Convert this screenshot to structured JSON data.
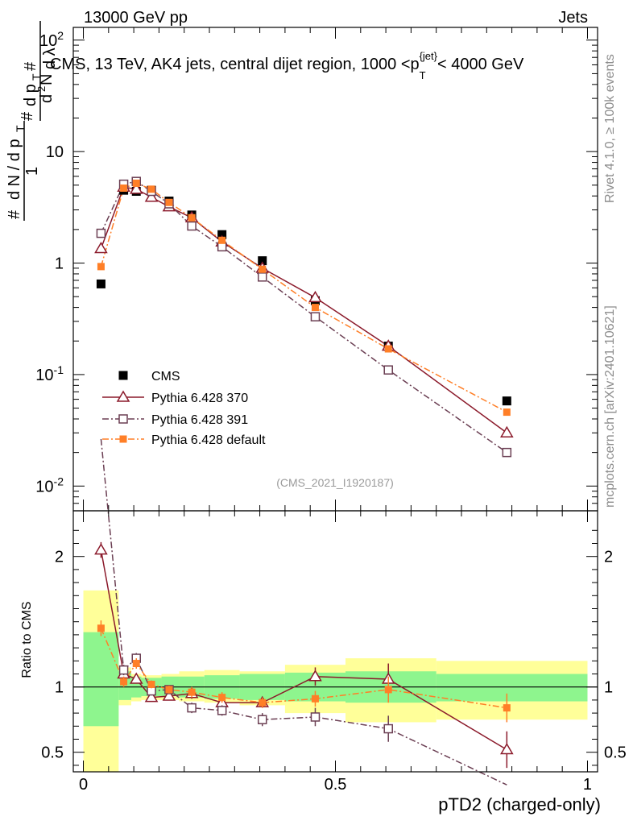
{
  "header": {
    "left": "13000 GeV pp",
    "right": "Jets"
  },
  "side": {
    "rivet": "Rivet 4.1.0, ≥ 100k events",
    "mcplots": "mcplots.cern.ch [arXiv:2401.10621]"
  },
  "colors": {
    "data": "#000000",
    "p370": "#8b1a2b",
    "p391": "#6b3f53",
    "pdef": "#ff7f27",
    "band_inner": "#8ef58e",
    "band_outer": "#ffff99"
  },
  "chart_data": [
    {
      "type": "scatter",
      "panel": "main",
      "title": "CMS, 13 TeV, AK4 jets, central dijet region, 1000 <p_T^{jet}< 4000 GeV",
      "ylabel": "1/(dN/dp_T) d²N/(dp_T dλ)",
      "yscale": "log",
      "ylim": [
        0.006,
        130
      ],
      "xlim": [
        -0.02,
        1.02
      ],
      "yticks": [
        {
          "v": 0.01,
          "label": "10^-2"
        },
        {
          "v": 0.1,
          "label": "10^-1"
        },
        {
          "v": 1,
          "label": "1"
        },
        {
          "v": 10,
          "label": "10"
        },
        {
          "v": 100,
          "label": "10^2"
        }
      ],
      "watermark": "(CMS_2021_I1920187)",
      "x": [
        0.035,
        0.08,
        0.105,
        0.135,
        0.17,
        0.215,
        0.275,
        0.355,
        0.46,
        0.605,
        0.84
      ],
      "series": [
        {
          "name": "CMS",
          "key": "data",
          "marker": "square-filled",
          "values": [
            0.65,
            4.5,
            4.4,
            4.5,
            3.6,
            2.7,
            1.8,
            1.05,
            0.46,
            0.18,
            0.058
          ]
        },
        {
          "name": "Pythia 6.428 370",
          "key": "p370",
          "marker": "triangle-open",
          "line": "solid",
          "values": [
            1.35,
            4.8,
            4.6,
            3.9,
            3.2,
            2.55,
            1.55,
            0.9,
            0.49,
            0.18,
            0.03
          ]
        },
        {
          "name": "Pythia 6.428 391",
          "key": "p391",
          "marker": "square-open",
          "line": "dashdot",
          "values": [
            1.85,
            5.1,
            5.4,
            4.4,
            3.4,
            2.15,
            1.4,
            0.75,
            0.33,
            0.11,
            0.02
          ]
        },
        {
          "name": "Pythia 6.428 default",
          "key": "pdef",
          "marker": "square-small-filled",
          "line": "dashdot",
          "values": [
            0.93,
            4.7,
            5.2,
            4.6,
            3.5,
            2.55,
            1.6,
            0.88,
            0.4,
            0.17,
            0.046
          ]
        }
      ]
    },
    {
      "type": "line",
      "panel": "ratio",
      "ylabel": "Ratio to CMS",
      "xlabel": "pTD2 (charged-only)",
      "ylim": [
        0.35,
        2.35
      ],
      "xlim": [
        -0.02,
        1.02
      ],
      "yticks": [
        0.5,
        1,
        2
      ],
      "xticks": [
        {
          "v": 0,
          "label": "0"
        },
        {
          "v": 0.5,
          "label": "0.5"
        },
        {
          "v": 1,
          "label": "1"
        }
      ],
      "bands": [
        {
          "x0": 0.0,
          "x1": 0.07,
          "inner": [
            0.7,
            1.42
          ],
          "outer": [
            0.0,
            1.74
          ]
        },
        {
          "x0": 0.07,
          "x1": 0.095,
          "inner": [
            0.9,
            1.12
          ],
          "outer": [
            0.86,
            1.15
          ]
        },
        {
          "x0": 0.095,
          "x1": 0.115,
          "inner": [
            0.92,
            1.08
          ],
          "outer": [
            0.89,
            1.1
          ]
        },
        {
          "x0": 0.115,
          "x1": 0.155,
          "inner": [
            0.93,
            1.07
          ],
          "outer": [
            0.9,
            1.09
          ]
        },
        {
          "x0": 0.155,
          "x1": 0.19,
          "inner": [
            0.93,
            1.08
          ],
          "outer": [
            0.9,
            1.1
          ]
        },
        {
          "x0": 0.19,
          "x1": 0.24,
          "inner": [
            0.92,
            1.08
          ],
          "outer": [
            0.89,
            1.12
          ]
        },
        {
          "x0": 0.24,
          "x1": 0.31,
          "inner": [
            0.91,
            1.09
          ],
          "outer": [
            0.88,
            1.13
          ]
        },
        {
          "x0": 0.31,
          "x1": 0.4,
          "inner": [
            0.9,
            1.1
          ],
          "outer": [
            0.86,
            1.12
          ]
        },
        {
          "x0": 0.4,
          "x1": 0.52,
          "inner": [
            0.89,
            1.11
          ],
          "outer": [
            0.8,
            1.17
          ]
        },
        {
          "x0": 0.52,
          "x1": 0.7,
          "inner": [
            0.88,
            1.12
          ],
          "outer": [
            0.73,
            1.22
          ]
        },
        {
          "x0": 0.7,
          "x1": 1.0,
          "inner": [
            0.89,
            1.1
          ],
          "outer": [
            0.75,
            1.2
          ]
        }
      ],
      "x": [
        0.035,
        0.08,
        0.105,
        0.135,
        0.17,
        0.215,
        0.275,
        0.355,
        0.46,
        0.605,
        0.84
      ],
      "series": [
        {
          "name": "Pythia 6.428 370",
          "key": "p370",
          "marker": "triangle-open",
          "line": "solid",
          "values": [
            2.05,
            1.1,
            1.06,
            0.92,
            0.93,
            0.95,
            0.88,
            0.88,
            1.08,
            1.06,
            0.52
          ],
          "err": [
            0.06,
            0.04,
            0.03,
            0.03,
            0.03,
            0.04,
            0.04,
            0.04,
            0.07,
            0.12,
            0.14
          ]
        },
        {
          "name": "Pythia 6.428 391",
          "key": "p391",
          "marker": "square-open",
          "line": "dashdot",
          "values": [
            2.9,
            1.13,
            1.22,
            0.97,
            0.98,
            0.84,
            0.82,
            0.75,
            0.77,
            0.68,
            0.25
          ],
          "err": [
            0.08,
            0.04,
            0.04,
            0.03,
            0.03,
            0.04,
            0.04,
            0.05,
            0.07,
            0.1,
            0.08
          ]
        },
        {
          "name": "Pythia 6.428 default",
          "key": "pdef",
          "marker": "square-small-filled",
          "line": "dashdot",
          "values": [
            1.45,
            1.04,
            1.18,
            1.02,
            0.98,
            0.96,
            0.92,
            0.88,
            0.91,
            0.98,
            0.84
          ],
          "err": [
            0.06,
            0.04,
            0.04,
            0.03,
            0.03,
            0.04,
            0.04,
            0.04,
            0.06,
            0.1,
            0.11
          ]
        }
      ]
    }
  ]
}
